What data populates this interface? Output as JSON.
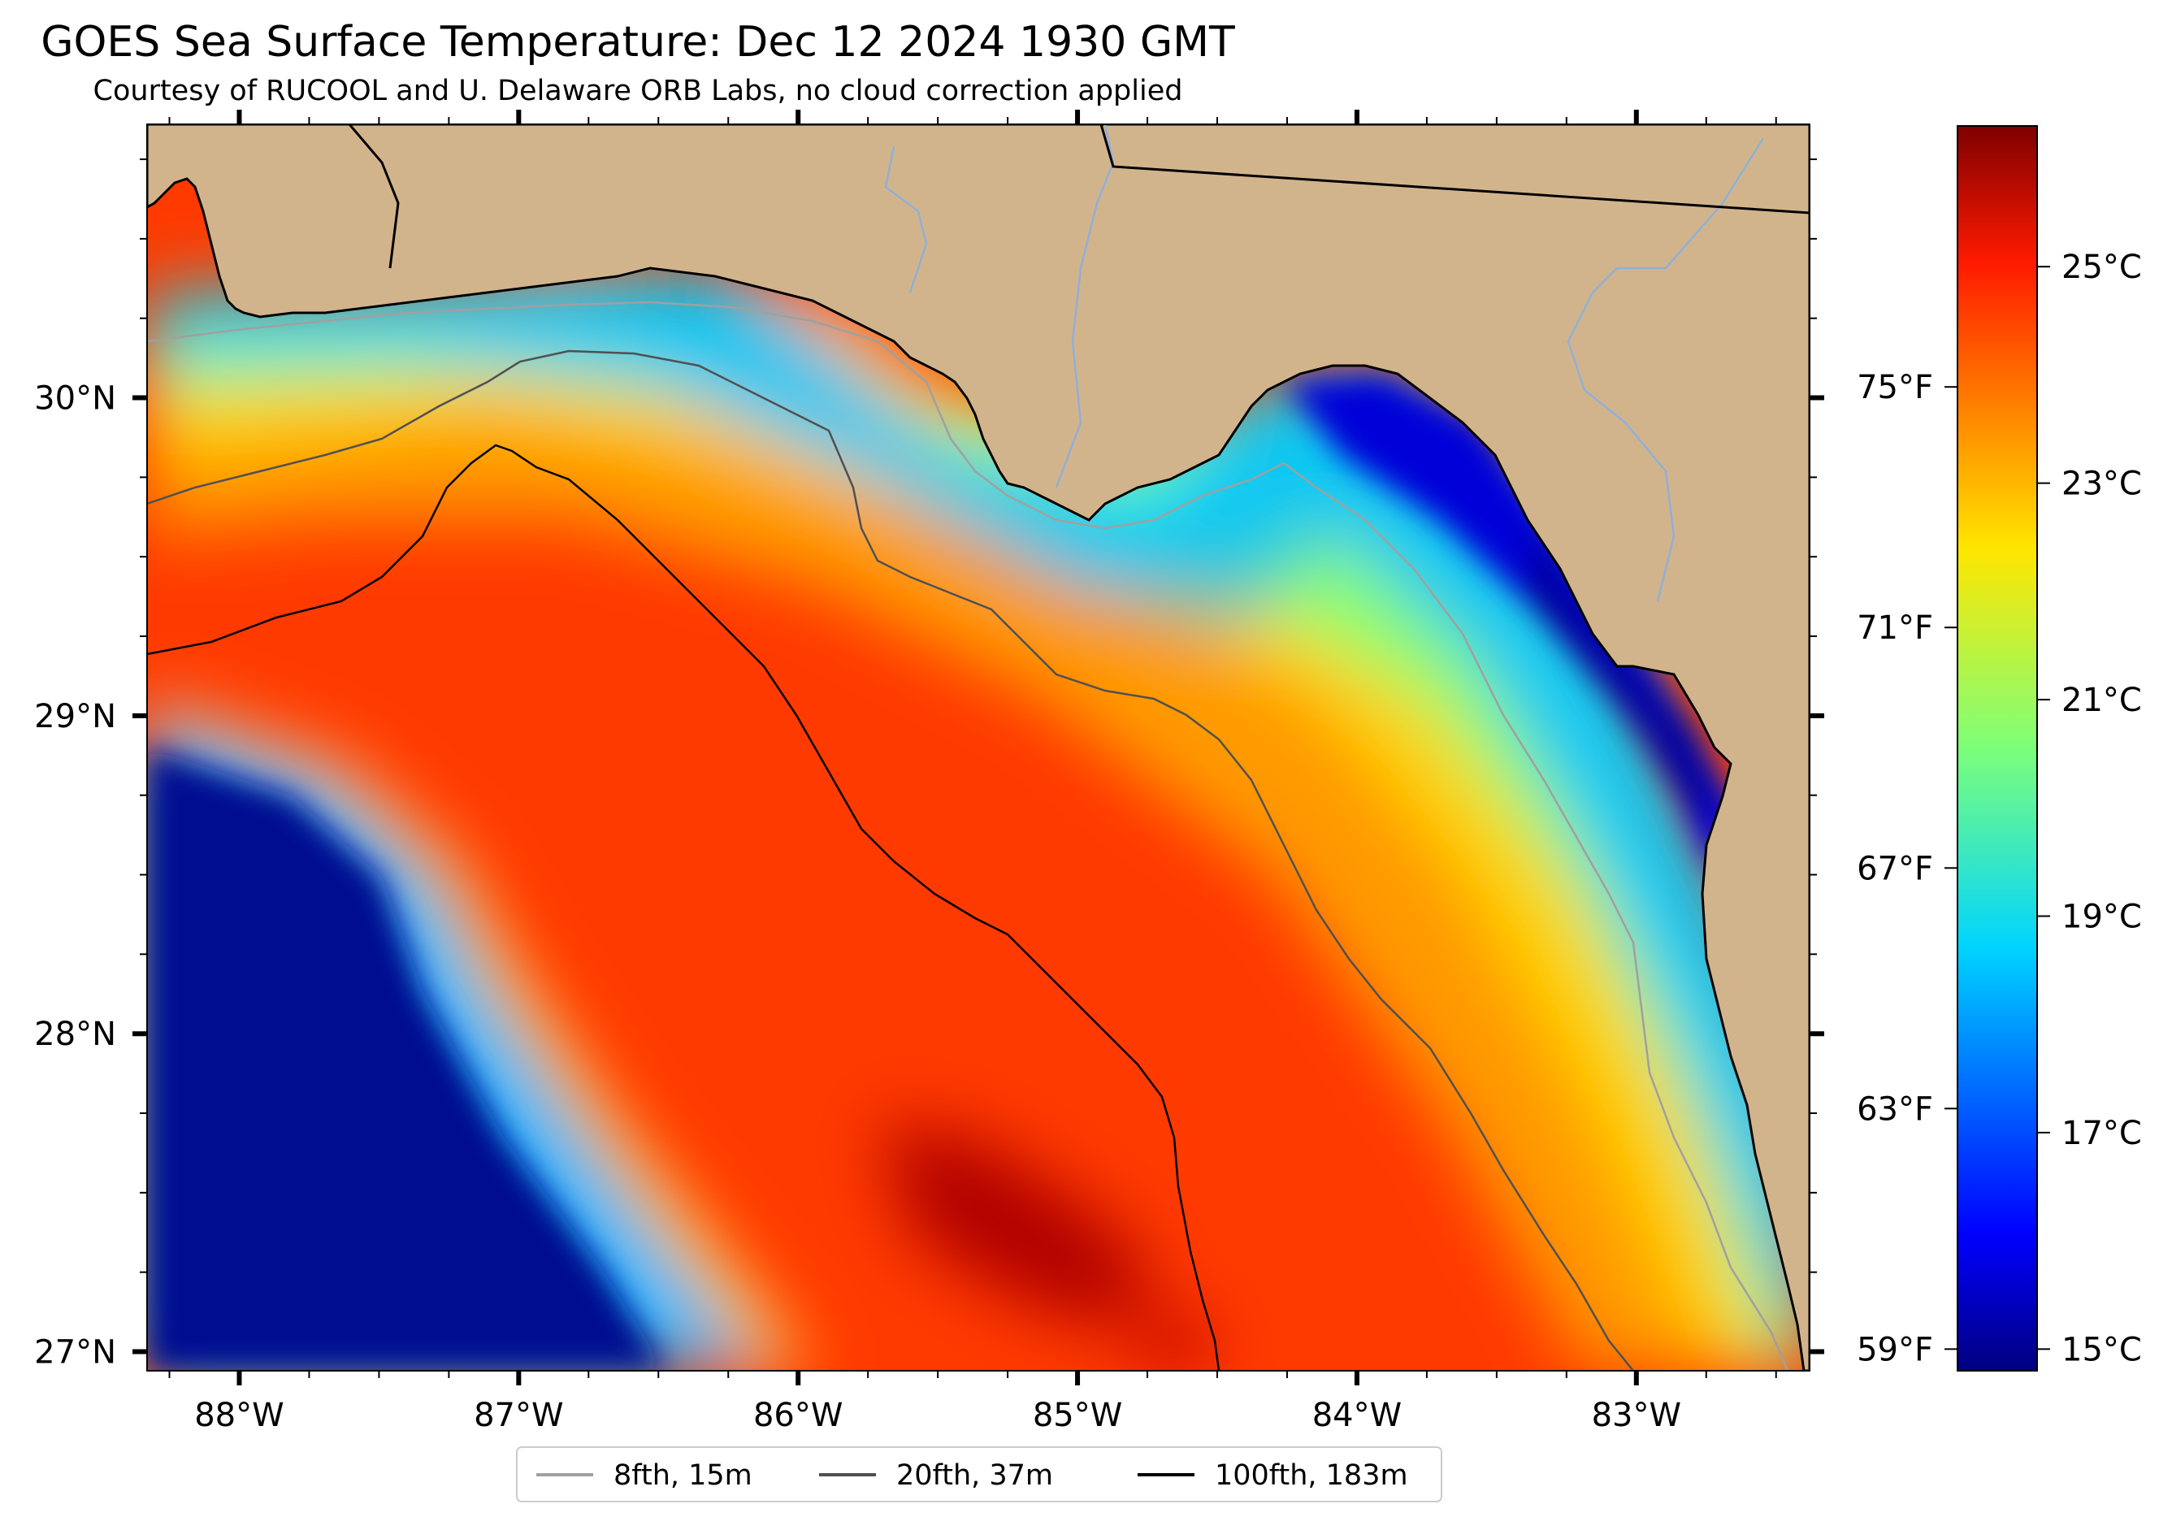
{
  "title": "GOES Sea Surface Temperature: Dec 12 2024 1930 GMT",
  "subtitle": "Courtesy of RUCOOL and U. Delaware ORB Labs, no cloud correction applied",
  "map": {
    "lon_range": [
      -88.33,
      -82.38
    ],
    "lat_range": [
      26.94,
      30.86
    ],
    "lon_ticks": [
      {
        "value": -88,
        "label": "88°W"
      },
      {
        "value": -87,
        "label": "87°W"
      },
      {
        "value": -86,
        "label": "86°W"
      },
      {
        "value": -85,
        "label": "85°W"
      },
      {
        "value": -84,
        "label": "84°W"
      },
      {
        "value": -83,
        "label": "83°W"
      }
    ],
    "lat_ticks": [
      {
        "value": 30,
        "label": "30°N"
      },
      {
        "value": 29,
        "label": "29°N"
      },
      {
        "value": 28,
        "label": "28°N"
      },
      {
        "value": 27,
        "label": "27°N"
      }
    ],
    "colors": {
      "land": "#D2B48C",
      "coastline": "#000000",
      "rivers": "#8fb0d8",
      "no_data": "#ffffff"
    }
  },
  "colorbar": {
    "colormap": "jet",
    "range_c": [
      14.8,
      26.3
    ],
    "celsius_ticks": [
      {
        "value": 25,
        "label": "25°C"
      },
      {
        "value": 23,
        "label": "23°C"
      },
      {
        "value": 21,
        "label": "21°C"
      },
      {
        "value": 19,
        "label": "19°C"
      },
      {
        "value": 17,
        "label": "17°C"
      },
      {
        "value": 15,
        "label": "15°C"
      }
    ],
    "fahrenheit_ticks": [
      {
        "value": 75,
        "label": "75°F"
      },
      {
        "value": 71,
        "label": "71°F"
      },
      {
        "value": 67,
        "label": "67°F"
      },
      {
        "value": 63,
        "label": "63°F"
      },
      {
        "value": 59,
        "label": "59°F"
      }
    ]
  },
  "legend": {
    "placement": "bottom-center",
    "items": [
      {
        "label": "8fth, 15m",
        "color": "#a0a0a0"
      },
      {
        "label": "20fth, 37m",
        "color": "#505050"
      },
      {
        "label": "100fth, 183m",
        "color": "#000000"
      }
    ]
  }
}
